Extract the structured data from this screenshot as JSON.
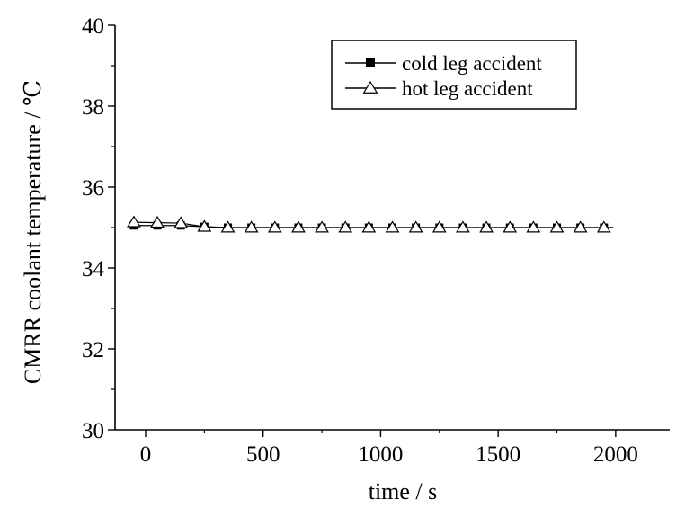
{
  "chart_data": {
    "type": "line",
    "title": "",
    "xlabel": "time / s",
    "ylabel": "CMRR coolant temperature / ℃",
    "xlim": [
      -130,
      2230
    ],
    "ylim": [
      30,
      40
    ],
    "xticks": [
      0,
      500,
      1000,
      1500,
      2000
    ],
    "xtick_labels": [
      "0",
      "500",
      "1000",
      "1500",
      "2000"
    ],
    "yticks": [
      30,
      32,
      34,
      36,
      38,
      40
    ],
    "ytick_labels": [
      "30",
      "32",
      "34",
      "36",
      "38",
      "40"
    ],
    "grid": false,
    "legend_position": "top-right",
    "series": [
      {
        "name": "cold leg accident",
        "marker": "filled-square",
        "color": "#000000",
        "x": [
          -50,
          50,
          150,
          250,
          350,
          450,
          550,
          650,
          750,
          850,
          950,
          1050,
          1150,
          1250,
          1350,
          1450,
          1550,
          1650,
          1750,
          1850,
          1950,
          1990
        ],
        "y": [
          35.05,
          35.05,
          35.05,
          35.02,
          35.0,
          35.0,
          35.0,
          35.0,
          35.0,
          35.0,
          35.0,
          35.0,
          35.0,
          35.0,
          35.0,
          35.0,
          35.0,
          35.0,
          35.0,
          35.0,
          35.0,
          35.0
        ]
      },
      {
        "name": "hot leg accident",
        "marker": "open-triangle",
        "color": "#000000",
        "x": [
          -50,
          50,
          150,
          250,
          350,
          450,
          550,
          650,
          750,
          850,
          950,
          1050,
          1150,
          1250,
          1350,
          1450,
          1550,
          1650,
          1750,
          1850,
          1950,
          1990
        ],
        "y": [
          35.13,
          35.12,
          35.11,
          35.02,
          35.0,
          35.0,
          35.0,
          35.0,
          35.0,
          35.0,
          35.0,
          35.0,
          35.0,
          35.0,
          35.0,
          35.0,
          35.0,
          35.0,
          35.0,
          35.0,
          35.0,
          35.0
        ]
      }
    ]
  }
}
